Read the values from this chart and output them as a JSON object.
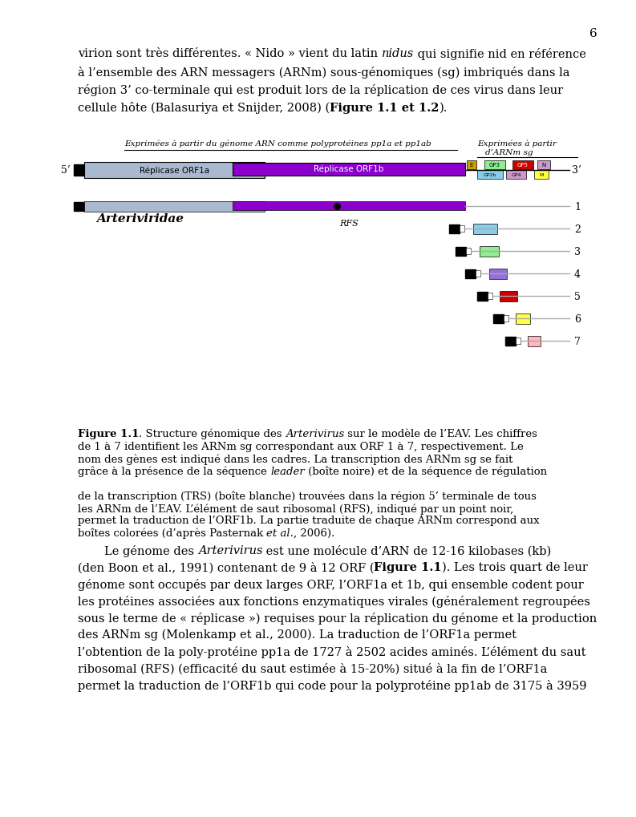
{
  "page_number": "6",
  "top_text_line1_pre": "virion sont très différentes. « Nido » vient du latin ",
  "top_text_line1_ital": "nidus",
  "top_text_line1_post": " qui signifie nid en référence",
  "top_text_line2": "à l’ensemble des ARN messagers (ARNm) sous-génomiques (sg) imbriqués dans la",
  "top_text_line3": "région 3’ co-terminale qui est produit lors de la réplication de ces virus dans leur",
  "top_text_line4_pre": "cellule hôte (Balasuriya et Snijder, 2008) (",
  "top_text_line4_bold": "Figure 1.1 et 1.2",
  "top_text_line4_post": ").",
  "label_left": "Exprimées à partir du génome ARN comme polyprotéines pp1a et pp1ab",
  "label_right_line1": "Exprimées à partir",
  "label_right_line2": "d’ARNm sg",
  "five_prime": "5’",
  "three_prime": "3’",
  "orf1a_label": "Réplicase ORF1a",
  "orf1b_label": "Réplicase ORF1b",
  "rfs_label": "RFS",
  "arteriviridae_label": "Arteriviridae",
  "orf1a_color": "#aab8d0",
  "orf1b_color": "#8b00cc",
  "thin_line_color": "#aaaaaa",
  "black_box_color": "#000000",
  "E_color": "#c8a000",
  "GP2b_color": "#87ceeb",
  "GP3_color": "#90ee90",
  "GP4_color": "#cc99cc",
  "GP5_color": "#cc0000",
  "M_color": "#ffff44",
  "N_color": "#cc99cc",
  "mrna2_color": "#87ceeb",
  "mrna3_color": "#90ee90",
  "mrna4_color": "#9370db",
  "mrna5_color": "#cc0000",
  "mrna6_color": "#ffff44",
  "mrna7_color": "#ffb6c1",
  "caption_line0_bold": "Figure 1.1",
  "caption_line0_pre_ital": ". Structure génomique des ",
  "caption_line0_ital": "Arterivirus",
  "caption_line0_post": " sur le modèle de l’EAV. Les chiffres",
  "caption_lines": [
    "de 1 à 7 identifient les ARNm sg correspondant aux ORF 1 à 7, respectivement. Le",
    "nom des gènes est indiqué dans les cadres. La transcription des ARNm sg se fait",
    "grâce à la présence de la séquence ",
    " (boîte noire) et de la séquence de régulation",
    "de la transcription (TRS) (boîte blanche) trouvées dans la région 5’ terminale de tous",
    "les ARNm de l’EAV. L’élément de saut ribosomal (RFS), indiqué par un point noir,",
    "permet la traduction de l’ORF1b. La partie traduite de chaque ARNm correspond aux",
    "boîtes colorées (d’après Pasternak ",
    ", 2006)."
  ],
  "caption_leader_ital": "leader",
  "caption_etal_ital": "et al.",
  "bottom_indent_line_pre": "Le génome des ",
  "bottom_indent_line_ital": "Arterivirus",
  "bottom_indent_line_post": " est une molécule d’ARN de 12-16 kilobases (kb)",
  "bottom_line1_pre": "(den Boon et al., 1991) contenant de 9 à 12 ORF (",
  "bottom_line1_bold": "Figure 1.1",
  "bottom_line1_post": "). Les trois quart de leur",
  "bottom_lines": [
    "génome sont occupés par deux larges ORF, l’ORF1a et 1b, qui ensemble codent pour",
    "les protéines associées aux fonctions enzymatiques virales (généralement regroupées",
    "sous le terme de « réplicase ») requises pour la réplication du génome et la production",
    "des ARNm sg (Molenkamp et al., 2000). La traduction de l’ORF1a permet",
    "l’obtention de la poly-protéine pp1a de 1727 à 2502 acides aminés. L’élément du saut",
    "ribosomal (RFS) (efficacité du saut estimée à 15-20%) situé à la fin de l’ORF1a",
    "permet la traduction de l’ORF1b qui code pour la polyprotéine pp1ab de 3175 à 3959"
  ]
}
